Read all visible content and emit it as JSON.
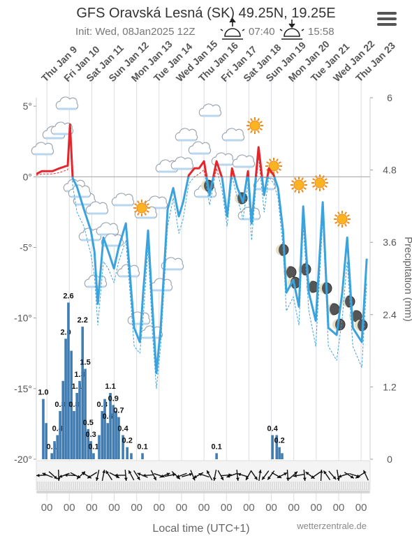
{
  "chart_data": {
    "type": "line",
    "title": "GFS Oravská Lesná (SK) 49.25N, 19.25E",
    "subtitle": "Init: Wed, 08Jan2025 12Z",
    "sunrise": "07:40",
    "sunset": "15:58",
    "x_label": "Local time (UTC+1)",
    "y2_label": "Precipitation (mm)",
    "credit": "wetterzentrale.de",
    "xlim": [
      -0.47,
      14.4
    ],
    "xticks": [
      {
        "value": 0,
        "label": "Thu Jan 9"
      },
      {
        "value": 1,
        "label": "Fri Jan 10"
      },
      {
        "value": 2,
        "label": "Sat Jan 11"
      },
      {
        "value": 3,
        "label": "Sun Jan 12"
      },
      {
        "value": 4,
        "label": "Mon Jan 13"
      },
      {
        "value": 5,
        "label": "Tue Jan 14"
      },
      {
        "value": 6,
        "label": "Wed Jan 15"
      },
      {
        "value": 7,
        "label": "Thu Jan 16"
      },
      {
        "value": 8,
        "label": "Fri Jan 17"
      },
      {
        "value": 9,
        "label": "Sat Jan 18"
      },
      {
        "value": 10,
        "label": "Sun Jan 19"
      },
      {
        "value": 11,
        "label": "Mon Jan 20"
      },
      {
        "value": 12,
        "label": "Tue Jan 21"
      },
      {
        "value": 13,
        "label": "Wed Jan 22"
      },
      {
        "value": 14,
        "label": "Thu Jan 23"
      }
    ],
    "x2_labels": [
      "00",
      "00",
      "00",
      "00",
      "00",
      "00",
      "00",
      "00",
      "00",
      "00",
      "00",
      "00",
      "00",
      "00",
      "00"
    ],
    "ylim": [
      -20,
      5.6
    ],
    "yticks": [
      {
        "value": 5,
        "label": "5°"
      },
      {
        "value": 0,
        "label": "0°"
      },
      {
        "value": -5,
        "label": "-5°"
      },
      {
        "value": -10,
        "label": "-10°"
      },
      {
        "value": -15,
        "label": "-15°"
      },
      {
        "value": -20,
        "label": "-20°"
      }
    ],
    "y2lim": [
      0,
      6
    ],
    "y2ticks": [
      6,
      4.8,
      3.6,
      2.4,
      1.2,
      0
    ],
    "series": [
      {
        "color": "#3aa3dd",
        "above_zero_color": "#e3262c",
        "x": [
          -0.47,
          -0.22,
          0.25,
          0.56,
          0.93,
          1.03,
          1.15,
          1.34,
          1.65,
          1.96,
          2.12,
          2.27,
          2.52,
          2.74,
          2.99,
          3.2,
          3.52,
          3.67,
          3.89,
          4.14,
          4.29,
          4.51,
          4.7,
          4.88,
          5.07,
          5.38,
          5.63,
          5.88,
          6.07,
          6.32,
          6.57,
          6.78,
          7.0,
          7.25,
          7.56,
          7.81,
          8.03,
          8.25,
          8.49,
          8.74,
          8.96,
          9.12,
          9.43,
          9.68,
          9.89,
          10.11,
          10.3,
          10.52,
          10.67,
          10.98,
          11.23,
          11.42,
          11.67,
          11.98,
          12.29,
          12.54,
          12.91,
          13.16,
          13.38,
          13.63,
          14.03,
          14.25
        ],
        "values": [
          0.2,
          0.4,
          0.4,
          0.6,
          0.8,
          3.7,
          -0.1,
          -0.7,
          -2.3,
          -3.8,
          -5.3,
          -9.0,
          -4.3,
          -5.3,
          -6.5,
          -5.0,
          -3.3,
          -6.3,
          -10.7,
          -11.7,
          -8.2,
          -3.8,
          -9.2,
          -13.9,
          -10.7,
          -2.3,
          -0.8,
          -2.8,
          -1.8,
          0.1,
          0.6,
          0.6,
          1.1,
          -1.3,
          1.1,
          -0.1,
          -2.8,
          0.6,
          -0.8,
          -1.8,
          0.4,
          -3.3,
          2.1,
          -1.3,
          0.6,
          0.1,
          -0.8,
          -3.8,
          -8.2,
          -7.3,
          -9.2,
          -2.1,
          -8.2,
          -10.2,
          -1.8,
          -10.7,
          -11.2,
          -8.2,
          -4.3,
          -10.7,
          -11.7,
          -5.8
        ]
      },
      {
        "color": "#3aa3dd",
        "above_zero_color": "#e3262c",
        "dashed": true,
        "x": [
          -0.47,
          -0.22,
          0.25,
          0.56,
          0.93,
          1.03,
          1.15,
          1.34,
          1.65,
          1.96,
          2.12,
          2.27,
          2.52,
          2.74,
          2.99,
          3.2,
          3.52,
          3.67,
          3.89,
          4.14,
          4.29,
          4.51,
          4.7,
          4.88,
          5.07,
          5.38,
          5.63,
          5.88,
          6.07,
          6.32,
          6.57,
          6.78,
          7.0,
          7.25,
          7.56,
          7.81,
          8.03,
          8.25,
          8.49,
          8.74,
          8.96,
          9.12,
          9.43,
          9.68,
          9.89,
          10.11,
          10.3,
          10.52,
          10.67,
          10.98,
          11.23,
          11.42,
          11.67,
          11.98,
          12.29,
          12.54,
          12.91,
          13.16,
          13.38,
          13.63,
          14.03,
          14.25
        ],
        "values": [
          0.1,
          0.2,
          0.2,
          0.3,
          0.5,
          2.8,
          -0.6,
          -2.5,
          -3.5,
          -5.5,
          -7,
          -10.5,
          -6,
          -6.5,
          -7.5,
          -6,
          -4.5,
          -7.5,
          -12,
          -12.5,
          -10,
          -5,
          -11,
          -15,
          -12,
          -3.5,
          -1.5,
          -4,
          -3,
          -0.5,
          0,
          0.2,
          0.5,
          -2,
          0.6,
          -1,
          -3.5,
          0,
          -1.5,
          -3,
          -0.5,
          -4.5,
          1.5,
          -2.5,
          0,
          -0.5,
          -1.5,
          -5,
          -9.5,
          -8.5,
          -10.5,
          -3.5,
          -9.5,
          -12,
          -3,
          -12,
          -13,
          -10,
          -6,
          -12,
          -13.5,
          -7.5
        ]
      },
      {
        "type": "bar",
        "axis": "y2",
        "color": "#3f7db5",
        "x": [
          -0.16,
          -0.03,
          0.22,
          0.34,
          0.47,
          0.59,
          0.72,
          0.84,
          0.96,
          1.09,
          1.21,
          1.34,
          1.46,
          1.59,
          1.71,
          1.84,
          1.96,
          2.08,
          2.33,
          2.46,
          2.58,
          2.71,
          2.83,
          2.96,
          3.08,
          3.2,
          3.39,
          3.58,
          3.76,
          4.26,
          7.56,
          10.05,
          10.24,
          10.36,
          10.48
        ],
        "values": [
          1.0,
          0.6,
          0.1,
          0.3,
          0.4,
          0.8,
          1.3,
          2.0,
          2.6,
          1.8,
          0.8,
          1.1,
          1.3,
          2.2,
          1.5,
          0.5,
          0.3,
          0.1,
          0.4,
          0.8,
          1.0,
          0.6,
          1.1,
          0.9,
          0.8,
          0.7,
          0.4,
          0.2,
          0.1,
          0.1,
          0.1,
          0.4,
          0.4,
          0.2,
          0.1
        ],
        "value_labels": [
          "1.0",
          null,
          "0.1",
          null,
          "0.4",
          "0.8",
          null,
          "2.0",
          "2.6",
          null,
          "0.8",
          "1.1",
          "1.3",
          "2.2",
          "1.5",
          "0.5",
          "0.3",
          "0.1",
          null,
          "0.8",
          null,
          "0.6",
          "1.1",
          "0.9",
          null,
          "0.7",
          "0.4",
          "0.2",
          null,
          "0.1",
          "0.1",
          "0.4",
          null,
          "0.2",
          null
        ]
      }
    ]
  }
}
